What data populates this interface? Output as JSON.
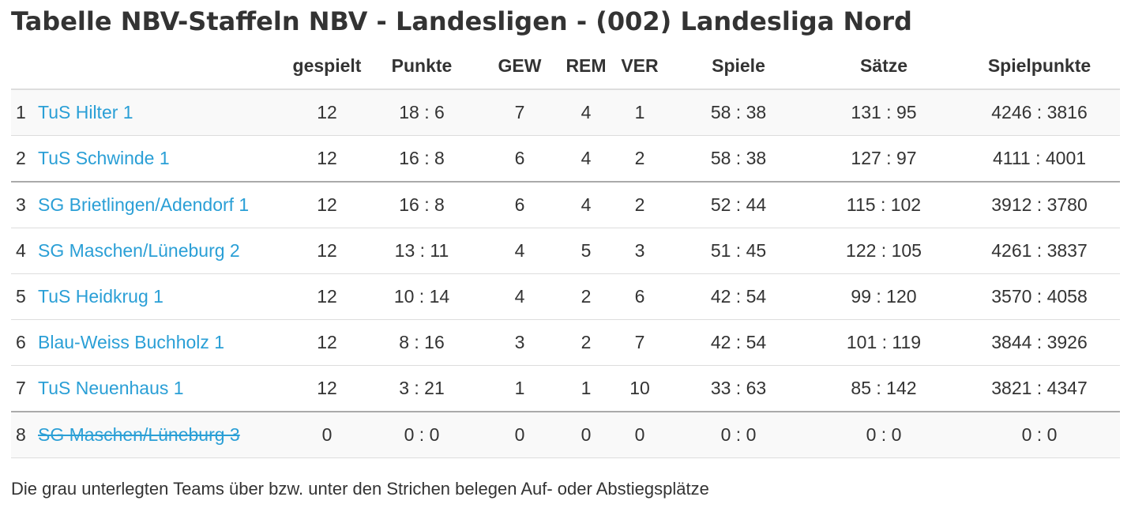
{
  "title": "Tabelle NBV-Staffeln NBV - Landesligen - (002) Landesliga Nord",
  "columns": {
    "gespielt": "gespielt",
    "punkte": "Punkte",
    "gew": "GEW",
    "rem": "REM",
    "ver": "VER",
    "spiele": "Spiele",
    "saetze": "Sätze",
    "spielpunkte": "Spielpunkte"
  },
  "rows": [
    {
      "rank": "1",
      "team": "TuS Hilter 1",
      "gespielt": "12",
      "punkte": "18 : 6",
      "gew": "7",
      "rem": "4",
      "ver": "1",
      "spiele": "58 : 38",
      "saetze": "131 : 95",
      "spielpunkte": "4246 : 3816"
    },
    {
      "rank": "2",
      "team": "TuS Schwinde 1",
      "gespielt": "12",
      "punkte": "16 : 8",
      "gew": "6",
      "rem": "4",
      "ver": "2",
      "spiele": "58 : 38",
      "saetze": "127 : 97",
      "spielpunkte": "4111 : 4001"
    },
    {
      "rank": "3",
      "team": "SG Brietlingen/Adendorf 1",
      "gespielt": "12",
      "punkte": "16 : 8",
      "gew": "6",
      "rem": "4",
      "ver": "2",
      "spiele": "52 : 44",
      "saetze": "115 : 102",
      "spielpunkte": "3912 : 3780"
    },
    {
      "rank": "4",
      "team": "SG Maschen/Lüneburg 2",
      "gespielt": "12",
      "punkte": "13 : 11",
      "gew": "4",
      "rem": "5",
      "ver": "3",
      "spiele": "51 : 45",
      "saetze": "122 : 105",
      "spielpunkte": "4261 : 3837"
    },
    {
      "rank": "5",
      "team": "TuS Heidkrug 1",
      "gespielt": "12",
      "punkte": "10 : 14",
      "gew": "4",
      "rem": "2",
      "ver": "6",
      "spiele": "42 : 54",
      "saetze": "99 : 120",
      "spielpunkte": "3570 : 4058"
    },
    {
      "rank": "6",
      "team": "Blau-Weiss Buchholz 1",
      "gespielt": "12",
      "punkte": "8 : 16",
      "gew": "3",
      "rem": "2",
      "ver": "7",
      "spiele": "42 : 54",
      "saetze": "101 : 119",
      "spielpunkte": "3844 : 3926"
    },
    {
      "rank": "7",
      "team": "TuS Neuenhaus 1",
      "gespielt": "12",
      "punkte": "3 : 21",
      "gew": "1",
      "rem": "1",
      "ver": "10",
      "spiele": "33 : 63",
      "saetze": "85 : 142",
      "spielpunkte": "3821 : 4347"
    },
    {
      "rank": "8",
      "team": "SG Maschen/Lüneburg 3",
      "gespielt": "0",
      "punkte": "0 : 0",
      "gew": "0",
      "rem": "0",
      "ver": "0",
      "spiele": "0 : 0",
      "saetze": "0 : 0",
      "spielpunkte": "0 : 0"
    }
  ],
  "footer": "Die grau unterlegten Teams über bzw. unter den Strichen belegen Auf- oder Abstiegsplätze",
  "colors": {
    "link": "#2a9fd6",
    "text": "#333333",
    "row_shade": "#f9f9f9"
  }
}
